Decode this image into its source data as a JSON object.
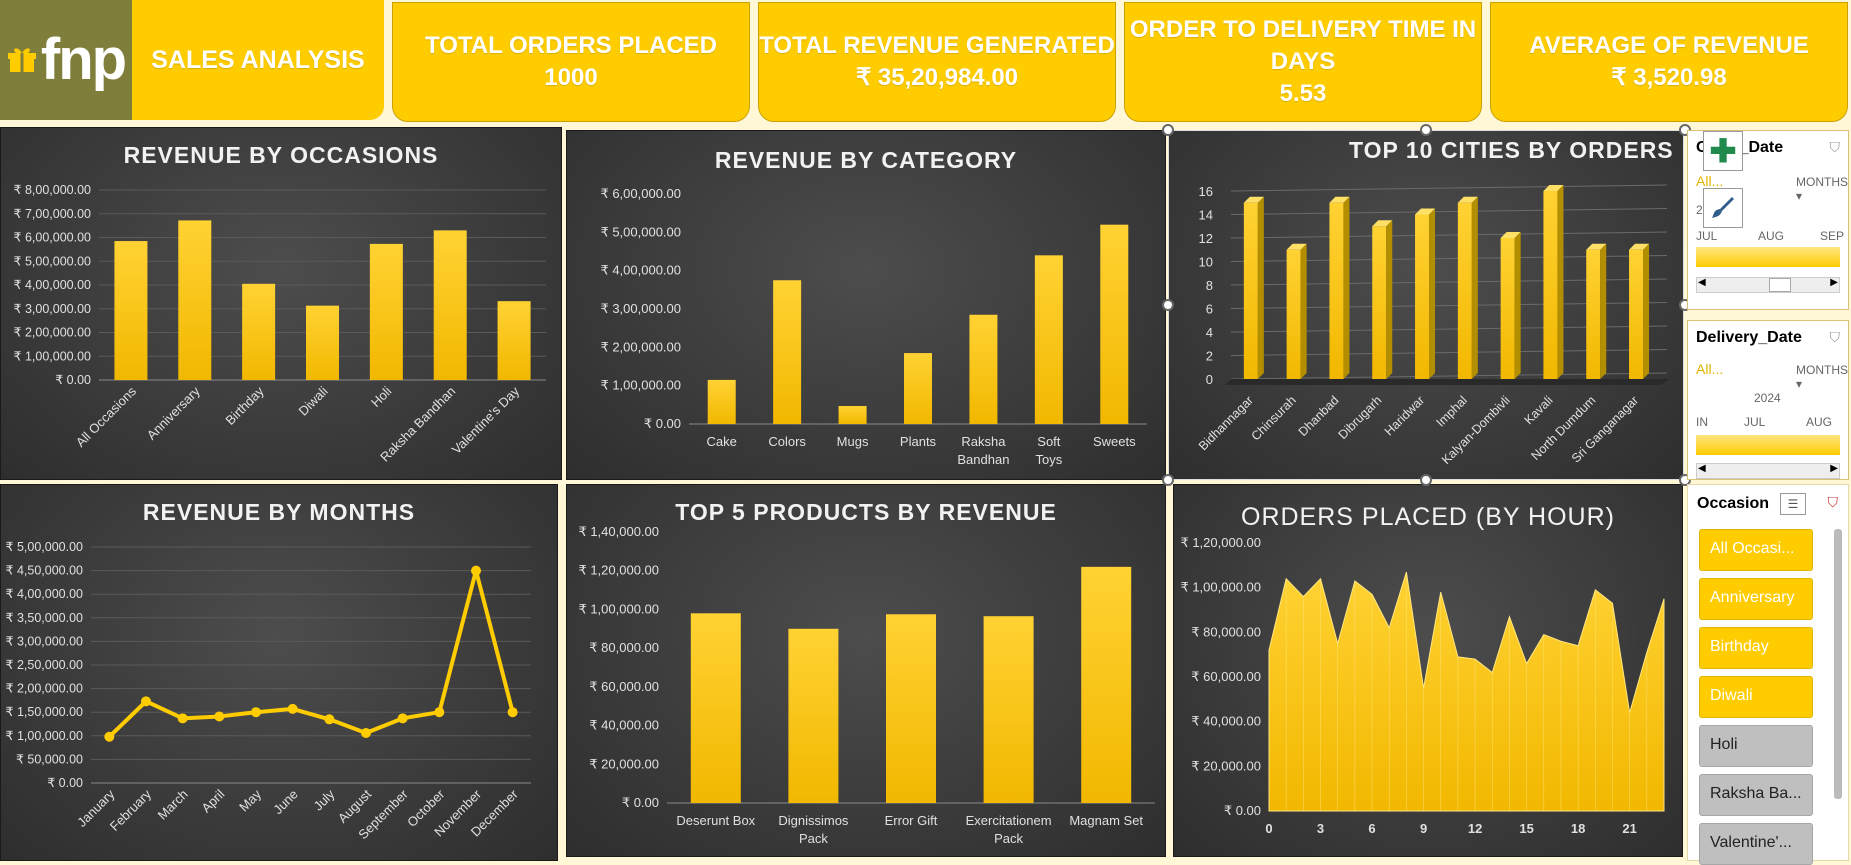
{
  "header": {
    "logo_text": "fnp",
    "dashboard_title": "SALES ANALYSIS",
    "kpis": [
      {
        "label": "TOTAL ORDERS PLACED",
        "value": "1000"
      },
      {
        "label": "TOTAL REVENUE GENERATED",
        "value": "₹ 35,20,984.00"
      },
      {
        "label_line1": "ORDER TO DELIVERY TIME IN",
        "label_line2": "DAYS",
        "value": "5.53"
      },
      {
        "label": "AVERAGE OF REVENUE",
        "value": "₹ 3,520.98"
      }
    ]
  },
  "colors": {
    "accent": "#ffcc00",
    "panel_bg": "#3d3d3d",
    "logo_bg": "#7f7f3b"
  },
  "charts": {
    "occasions": {
      "title": "REVENUE BY OCCASIONS"
    },
    "category": {
      "title": "REVENUE BY CATEGORY"
    },
    "cities": {
      "title": "TOP 10 CITIES BY ORDERS"
    },
    "months": {
      "title": "REVENUE BY MONTHS"
    },
    "products": {
      "title": "TOP 5 PRODUCTS BY REVENUE"
    },
    "hourly": {
      "title": "ORDERS PLACED (BY HOUR)"
    }
  },
  "chart_data": [
    {
      "id": "occasions",
      "type": "bar",
      "title": "REVENUE BY OCCASIONS",
      "categories": [
        "All Occasions",
        "Anniversary",
        "Birthday",
        "Diwali",
        "Holi",
        "Raksha Bandhan",
        "Valentine's Day"
      ],
      "values": [
        585000,
        672000,
        405000,
        313000,
        573000,
        630000,
        332000
      ],
      "ylim": [
        0,
        800000
      ],
      "yticks": [
        "₹ 0.00",
        "₹ 1,00,000.00",
        "₹ 2,00,000.00",
        "₹ 3,00,000.00",
        "₹ 4,00,000.00",
        "₹ 5,00,000.00",
        "₹ 6,00,000.00",
        "₹ 7,00,000.00",
        "₹ 8,00,000.00"
      ],
      "grid": true
    },
    {
      "id": "category",
      "type": "bar",
      "title": "REVENUE BY CATEGORY",
      "categories": [
        "Cake",
        "Colors",
        "Mugs",
        "Plants",
        "Raksha Bandhan",
        "Soft Toys",
        "Sweets"
      ],
      "values": [
        115000,
        375000,
        47000,
        185000,
        285000,
        440000,
        520000
      ],
      "ylim": [
        0,
        600000
      ],
      "yticks": [
        "₹ 0.00",
        "₹ 1,00,000.00",
        "₹ 2,00,000.00",
        "₹ 3,00,000.00",
        "₹ 4,00,000.00",
        "₹ 5,00,000.00",
        "₹ 6,00,000.00"
      ],
      "grid": false
    },
    {
      "id": "cities",
      "type": "bar",
      "title": "TOP 10 CITIES BY ORDERS",
      "categories": [
        "Bidhannagar",
        "Chinsurah",
        "Dhanbad",
        "Dibrugarh",
        "Haridwar",
        "Imphal",
        "Kalyan-Dombivli",
        "Kavali",
        "North Dumdum",
        "Sri Ganganagar"
      ],
      "values": [
        15,
        11,
        15,
        13,
        14,
        15,
        12,
        16,
        11,
        11
      ],
      "ylim": [
        0,
        16
      ],
      "yticks": [
        "0",
        "2",
        "4",
        "6",
        "8",
        "10",
        "12",
        "14",
        "16"
      ],
      "grid": true
    },
    {
      "id": "months",
      "type": "line",
      "title": "REVENUE BY MONTHS",
      "categories": [
        "January",
        "February",
        "March",
        "April",
        "May",
        "June",
        "July",
        "August",
        "September",
        "October",
        "November",
        "December"
      ],
      "values": [
        98000,
        173000,
        137000,
        141000,
        150000,
        157000,
        135000,
        106000,
        137000,
        150000,
        450000,
        150000
      ],
      "ylim": [
        0,
        500000
      ],
      "yticks": [
        "₹ 0.00",
        "₹ 50,000.00",
        "₹ 1,00,000.00",
        "₹ 1,50,000.00",
        "₹ 2,00,000.00",
        "₹ 2,50,000.00",
        "₹ 3,00,000.00",
        "₹ 3,50,000.00",
        "₹ 4,00,000.00",
        "₹ 4,50,000.00",
        "₹ 5,00,000.00"
      ],
      "grid": true
    },
    {
      "id": "products",
      "type": "bar",
      "title": "TOP 5 PRODUCTS BY REVENUE",
      "categories": [
        "Deserunt Box",
        "Dignissimos Pack",
        "Error Gift",
        "Exercitationem Pack",
        "Magnam Set"
      ],
      "values": [
        98000,
        90000,
        97500,
        96500,
        122000
      ],
      "ylim": [
        0,
        140000
      ],
      "yticks": [
        "₹ 0.00",
        "₹ 20,000.00",
        "₹ 40,000.00",
        "₹ 60,000.00",
        "₹ 80,000.00",
        "₹ 1,00,000.00",
        "₹ 1,20,000.00",
        "₹ 1,40,000.00"
      ],
      "grid": false
    },
    {
      "id": "hourly",
      "type": "area",
      "title": "ORDERS PLACED (BY HOUR)",
      "x": [
        0,
        1,
        2,
        3,
        4,
        5,
        6,
        7,
        8,
        9,
        10,
        11,
        12,
        13,
        14,
        15,
        16,
        17,
        18,
        19,
        20,
        21,
        22,
        23
      ],
      "values": [
        72000,
        104000,
        96000,
        104000,
        75000,
        103000,
        97000,
        82000,
        107000,
        55000,
        98000,
        69000,
        68000,
        62000,
        87000,
        66000,
        79000,
        76000,
        74000,
        99000,
        93000,
        44000,
        71000,
        95000
      ],
      "xticks": [
        "0",
        "3",
        "6",
        "9",
        "12",
        "15",
        "18",
        "21"
      ],
      "ylim": [
        0,
        120000
      ],
      "yticks": [
        "₹ 0.00",
        "₹ 20,000.00",
        "₹ 40,000.00",
        "₹ 60,000.00",
        "₹ 80,000.00",
        "₹ 1,00,000.00",
        "₹ 1,20,000.00"
      ],
      "grid": false
    }
  ],
  "slicers": {
    "order_date": {
      "title": "Order_Date",
      "all": "All...",
      "period": "MONTHS",
      "year": "2",
      "months": [
        "JUL",
        "AUG",
        "SEP"
      ]
    },
    "delivery_date": {
      "title": "Delivery_Date",
      "all": "All...",
      "period": "MONTHS",
      "year": "2024",
      "months": [
        "IN",
        "JUL",
        "AUG"
      ]
    },
    "occasion": {
      "title": "Occasion",
      "items": [
        {
          "label": "All Occasi...",
          "selected": true
        },
        {
          "label": "Anniversary",
          "selected": true
        },
        {
          "label": "Birthday",
          "selected": true
        },
        {
          "label": "Diwali",
          "selected": true
        },
        {
          "label": "Holi",
          "selected": false
        },
        {
          "label": "Raksha Ba...",
          "selected": false
        },
        {
          "label": "Valentine'...",
          "selected": false
        }
      ]
    }
  }
}
